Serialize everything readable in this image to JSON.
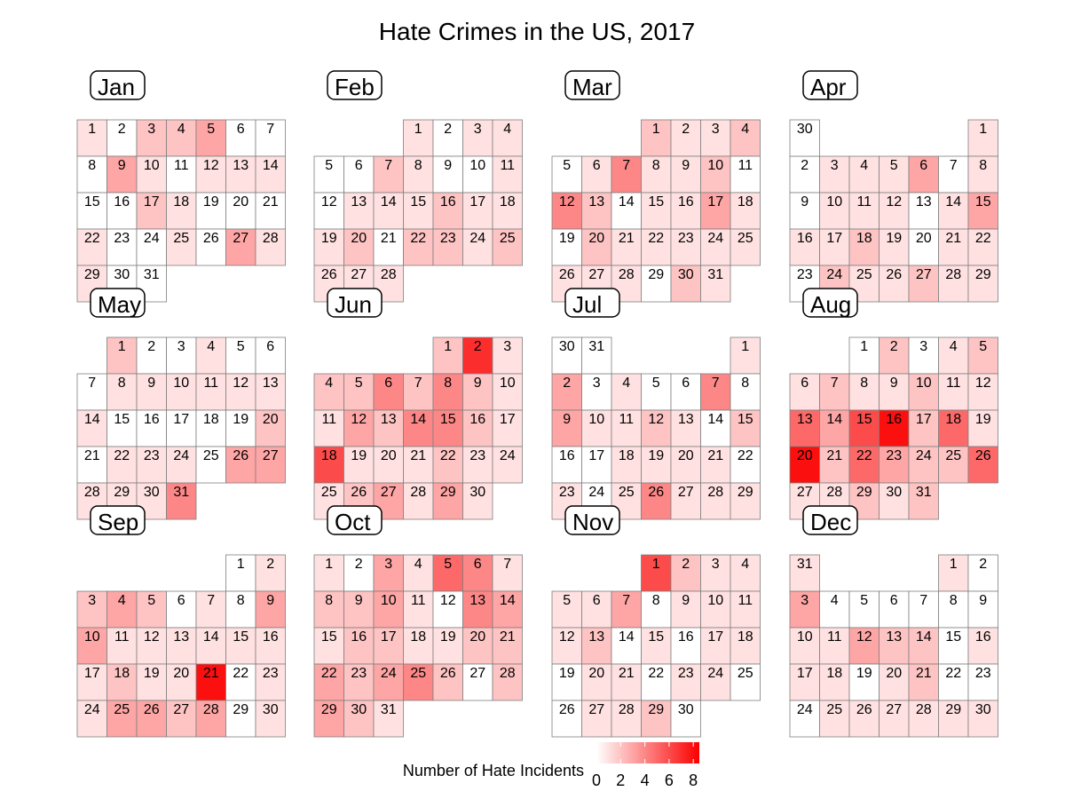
{
  "chart_data": {
    "type": "heatmap",
    "title": "Hate Crimes in the US, 2017",
    "year": 2017,
    "week_starts_on": "Sunday",
    "legend": {
      "title": "Number of Hate Incidents",
      "ticks": [
        0,
        2,
        4,
        6,
        8
      ],
      "range": [
        0,
        8.5
      ],
      "colors": [
        "#ffffff",
        "#fb0000"
      ],
      "placement": "bottom"
    },
    "months": [
      {
        "label": "Jan",
        "values": [
          1,
          0,
          2,
          2,
          3,
          0,
          0,
          0,
          3,
          1,
          0,
          1,
          1,
          1,
          0,
          0,
          2,
          1,
          0,
          0,
          0,
          1,
          0,
          0,
          1,
          0,
          3,
          1,
          1,
          0,
          0
        ]
      },
      {
        "label": "Feb",
        "values": [
          1,
          0,
          1,
          1,
          0,
          0,
          2,
          1,
          0,
          0,
          1,
          0,
          1,
          1,
          1,
          2,
          1,
          1,
          1,
          2,
          0,
          2,
          2,
          1,
          2,
          1,
          1,
          1
        ]
      },
      {
        "label": "Mar",
        "values": [
          2,
          1,
          1,
          2,
          0,
          1,
          4,
          1,
          1,
          2,
          0,
          4,
          2,
          0,
          1,
          1,
          3,
          1,
          0,
          2,
          1,
          1,
          1,
          1,
          1,
          1,
          1,
          1,
          0,
          2,
          1
        ]
      },
      {
        "label": "Apr",
        "values": [
          1,
          0,
          1,
          1,
          1,
          3,
          0,
          1,
          0,
          1,
          1,
          1,
          0,
          1,
          3,
          1,
          1,
          2,
          1,
          0,
          1,
          1,
          0,
          2,
          1,
          1,
          2,
          1,
          1,
          0
        ]
      },
      {
        "label": "May",
        "values": [
          2,
          0,
          0,
          1,
          0,
          0,
          0,
          1,
          1,
          1,
          1,
          1,
          1,
          1,
          0,
          0,
          0,
          0,
          0,
          2,
          0,
          1,
          1,
          1,
          0,
          3,
          3,
          1,
          1,
          1,
          4
        ]
      },
      {
        "label": "Jun",
        "values": [
          2,
          7,
          1,
          2,
          2,
          4,
          2,
          4,
          2,
          1,
          1,
          3,
          2,
          4,
          4,
          2,
          1,
          6,
          1,
          1,
          1,
          2,
          1,
          1,
          1,
          2,
          3,
          1,
          3,
          1
        ]
      },
      {
        "label": "Jul",
        "values": [
          1,
          3,
          0,
          1,
          0,
          0,
          4,
          0,
          3,
          1,
          1,
          2,
          1,
          0,
          2,
          0,
          0,
          1,
          1,
          1,
          1,
          0,
          1,
          0,
          1,
          4,
          1,
          1,
          1,
          0,
          0
        ]
      },
      {
        "label": "Aug",
        "values": [
          0,
          2,
          0,
          1,
          2,
          1,
          2,
          1,
          1,
          2,
          1,
          1,
          5,
          3,
          6,
          8,
          2,
          5,
          1,
          8,
          2,
          5,
          3,
          2,
          2,
          5,
          1,
          1,
          2,
          1,
          2
        ]
      },
      {
        "label": "Sep",
        "values": [
          0,
          1,
          2,
          3,
          2,
          0,
          1,
          0,
          3,
          3,
          1,
          1,
          1,
          1,
          1,
          1,
          1,
          2,
          1,
          1,
          8,
          0,
          1,
          1,
          3,
          3,
          2,
          3,
          0,
          1
        ]
      },
      {
        "label": "Oct",
        "values": [
          1,
          0,
          3,
          1,
          5,
          4,
          1,
          2,
          2,
          3,
          1,
          0,
          4,
          3,
          1,
          2,
          2,
          1,
          1,
          2,
          2,
          3,
          2,
          3,
          4,
          2,
          0,
          2,
          3,
          2,
          1
        ]
      },
      {
        "label": "Nov",
        "values": [
          6,
          2,
          1,
          1,
          1,
          1,
          3,
          0,
          1,
          1,
          1,
          1,
          2,
          0,
          1,
          0,
          1,
          1,
          0,
          1,
          1,
          0,
          1,
          1,
          0,
          0,
          1,
          1,
          2,
          0
        ]
      },
      {
        "label": "Dec",
        "values": [
          1,
          0,
          3,
          0,
          0,
          0,
          0,
          0,
          0,
          1,
          1,
          3,
          2,
          2,
          0,
          1,
          1,
          1,
          0,
          1,
          2,
          0,
          0,
          0,
          1,
          1,
          1,
          1,
          1,
          1,
          1
        ]
      }
    ]
  }
}
